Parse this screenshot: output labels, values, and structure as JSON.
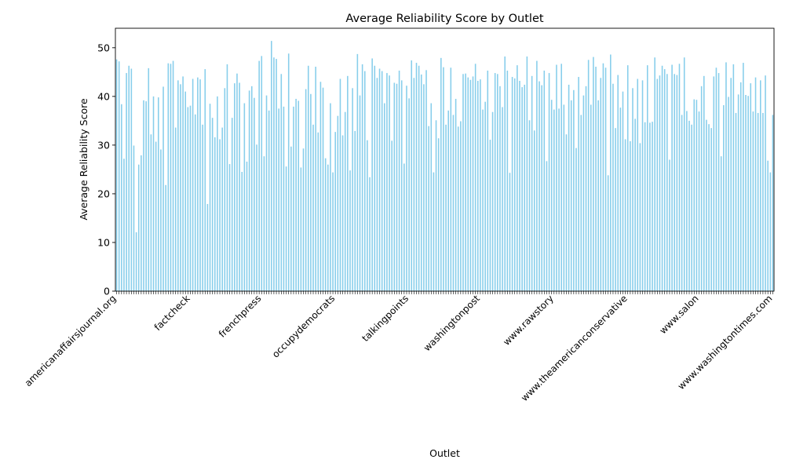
{
  "chart_data": {
    "type": "bar",
    "title": "Average Reliability Score by Outlet",
    "xlabel": "Outlet",
    "ylabel": "Average Reliability Score",
    "ylim": [
      0,
      54
    ],
    "yticks": [
      0,
      10,
      20,
      30,
      40,
      50
    ],
    "grid": false,
    "legend": "none",
    "bar_color": "#87ceeb",
    "label_samples": [
      "americanaffairsjournal.org",
      "factcheck",
      "frenchpress",
      "occupydemocrats",
      "talkingpoints",
      "washingtonpost",
      "www.rawstory",
      "www.theamericanconservative",
      "www.salon",
      "www.washingtontimes.com"
    ],
    "values": [
      47.6,
      47.2,
      38.4,
      27.2,
      44.8,
      46.3,
      45.7,
      29.9,
      12.1,
      26.0,
      27.9,
      39.2,
      39.0,
      45.8,
      32.2,
      40.0,
      30.7,
      39.8,
      29.1,
      42.0,
      21.8,
      46.8,
      46.7,
      47.3,
      33.6,
      43.3,
      42.5,
      44.1,
      41.0,
      37.8,
      38.1,
      43.6,
      36.3,
      43.9,
      43.5,
      34.2,
      45.6,
      17.9,
      38.5,
      35.6,
      31.6,
      40.0,
      31.2,
      33.6,
      41.7,
      46.6,
      26.1,
      35.6,
      42.7,
      44.7,
      42.8,
      24.5,
      38.6,
      26.6,
      41.2,
      42.1,
      39.7,
      30.1,
      47.3,
      48.3,
      27.7,
      40.2,
      37.1,
      51.4,
      48.0,
      47.7,
      37.5,
      44.6,
      37.9,
      25.6,
      48.8,
      29.7,
      37.9,
      39.5,
      39.1,
      25.4,
      29.3,
      41.5,
      46.3,
      40.5,
      34.2,
      46.1,
      32.6,
      43.0,
      41.8,
      27.3,
      26.0,
      38.6,
      24.4,
      32.7,
      36.0,
      43.6,
      32.0,
      36.8,
      44.2,
      24.8,
      41.7,
      32.9,
      48.7,
      40.2,
      46.6,
      45.2,
      31.0,
      23.4,
      47.8,
      46.3,
      43.8,
      45.7,
      45.2,
      38.6,
      44.8,
      44.3,
      30.9,
      42.8,
      42.6,
      45.3,
      43.3,
      26.2,
      42.2,
      39.6,
      47.4,
      43.8,
      46.9,
      46.3,
      44.5,
      42.5,
      45.4,
      33.9,
      38.6,
      24.4,
      35.1,
      31.4,
      47.9,
      46.0,
      34.2,
      37.1,
      45.9,
      36.2,
      39.5,
      33.8,
      34.9,
      44.6,
      44.7,
      43.9,
      43.4,
      44.1,
      46.7,
      43.2,
      43.5,
      37.3,
      38.9,
      45.3,
      31.1,
      36.8,
      44.8,
      44.6,
      42.1,
      37.8,
      48.2,
      45.3,
      24.3,
      44.0,
      43.7,
      46.4,
      43.2,
      41.9,
      42.4,
      48.2,
      35.1,
      44.2,
      33.0,
      47.3,
      43.1,
      42.3,
      45.3,
      26.7,
      44.8,
      39.3,
      37.3,
      46.5,
      37.5,
      46.7,
      38.3,
      32.2,
      42.4,
      39.2,
      41.3,
      29.4,
      44.0,
      36.2,
      40.2,
      42.1,
      47.5,
      38.3,
      48.1,
      46.1,
      39.2,
      43.8,
      46.8,
      45.9,
      23.8,
      48.6,
      42.6,
      33.5,
      44.4,
      37.7,
      41.0,
      31.2,
      46.4,
      30.8,
      41.7,
      35.4,
      43.6,
      30.4,
      43.3,
      34.7,
      46.4,
      34.6,
      34.8,
      48.0,
      43.6,
      44.3,
      46.3,
      45.6,
      44.6,
      27.0,
      46.5,
      44.6,
      44.4,
      46.7,
      36.2,
      48.0,
      37.0,
      35.0,
      34.2,
      39.4,
      39.3,
      36.9,
      42.1,
      44.2,
      35.2,
      34.3,
      33.5,
      44.1,
      45.9,
      44.8,
      27.7,
      38.2,
      47.0,
      39.9,
      43.8,
      46.6,
      36.6,
      40.4,
      42.9,
      46.9,
      40.3,
      40.1,
      42.7,
      36.9,
      43.9,
      36.6,
      43.3,
      36.6,
      44.3,
      26.8,
      24.4,
      36.2
    ]
  }
}
